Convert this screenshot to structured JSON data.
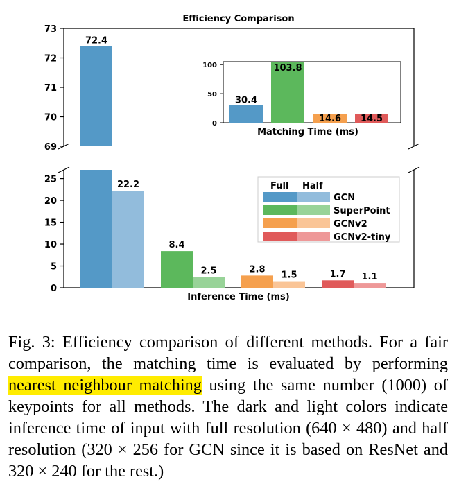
{
  "chart_data": [
    {
      "type": "bar",
      "title": "Efficiency Comparison",
      "xlabel": "Inference Time (ms)",
      "ylabel": "",
      "broken_y_axis": true,
      "ylim_lower": [
        0,
        27
      ],
      "ylim_upper": [
        69,
        73
      ],
      "yticks_lower": [
        0,
        5,
        10,
        15,
        20,
        25
      ],
      "yticks_upper": [
        69,
        70,
        71,
        72,
        73
      ],
      "categories": [
        "GCN",
        "SuperPoint",
        "GCNv2",
        "GCNv2-tiny"
      ],
      "series": [
        {
          "name": "Full",
          "values": [
            72.4,
            8.4,
            2.8,
            1.7
          ]
        },
        {
          "name": "Half",
          "values": [
            22.2,
            2.5,
            1.5,
            1.1
          ]
        }
      ],
      "data_labels": {
        "Full": [
          "72.4",
          "8.4",
          "2.8",
          "1.7"
        ],
        "Half": [
          "22.2",
          "2.5",
          "1.5",
          "1.1"
        ]
      },
      "colors": {
        "full": [
          "#5499c7",
          "#5cb85c",
          "#f5a04e",
          "#e05a5a"
        ],
        "half": [
          "#92bcdc",
          "#98d398",
          "#fac597",
          "#ee9898"
        ]
      },
      "legend": {
        "placement": "right",
        "header_full": "Full",
        "header_half": "Half",
        "entries": [
          "GCN",
          "SuperPoint",
          "GCNv2",
          "GCNv2-tiny"
        ]
      },
      "grid": false
    },
    {
      "type": "bar",
      "title": "",
      "xlabel": "Matching Time (ms)",
      "ylabel": "",
      "ylim": [
        0,
        105
      ],
      "yticks": [
        0,
        50,
        100
      ],
      "categories": [
        "GCN",
        "SuperPoint",
        "GCNv2",
        "GCNv2-tiny"
      ],
      "values": [
        30.4,
        103.8,
        14.6,
        14.5
      ],
      "data_labels": [
        "30.4",
        "103.8",
        "14.6",
        "14.5"
      ],
      "colors": [
        "#5499c7",
        "#5cb85c",
        "#f5a04e",
        "#e05a5a"
      ],
      "inset_placement": "upper-right",
      "grid": false
    }
  ],
  "caption": {
    "label": "Fig. 3:",
    "text_before": "Efficiency comparison of different methods. For a fair comparison, the matching time is evaluated by performing",
    "highlight": "nearest neighbour matching",
    "text_after": "using the same number (1000) of keypoints for all methods. The dark and light colors indicate inference time of input with full resolution (640 × 480) and half resolution (320 × 256 for GCN since it is based on ResNet and 320 × 240 for the rest.)"
  }
}
